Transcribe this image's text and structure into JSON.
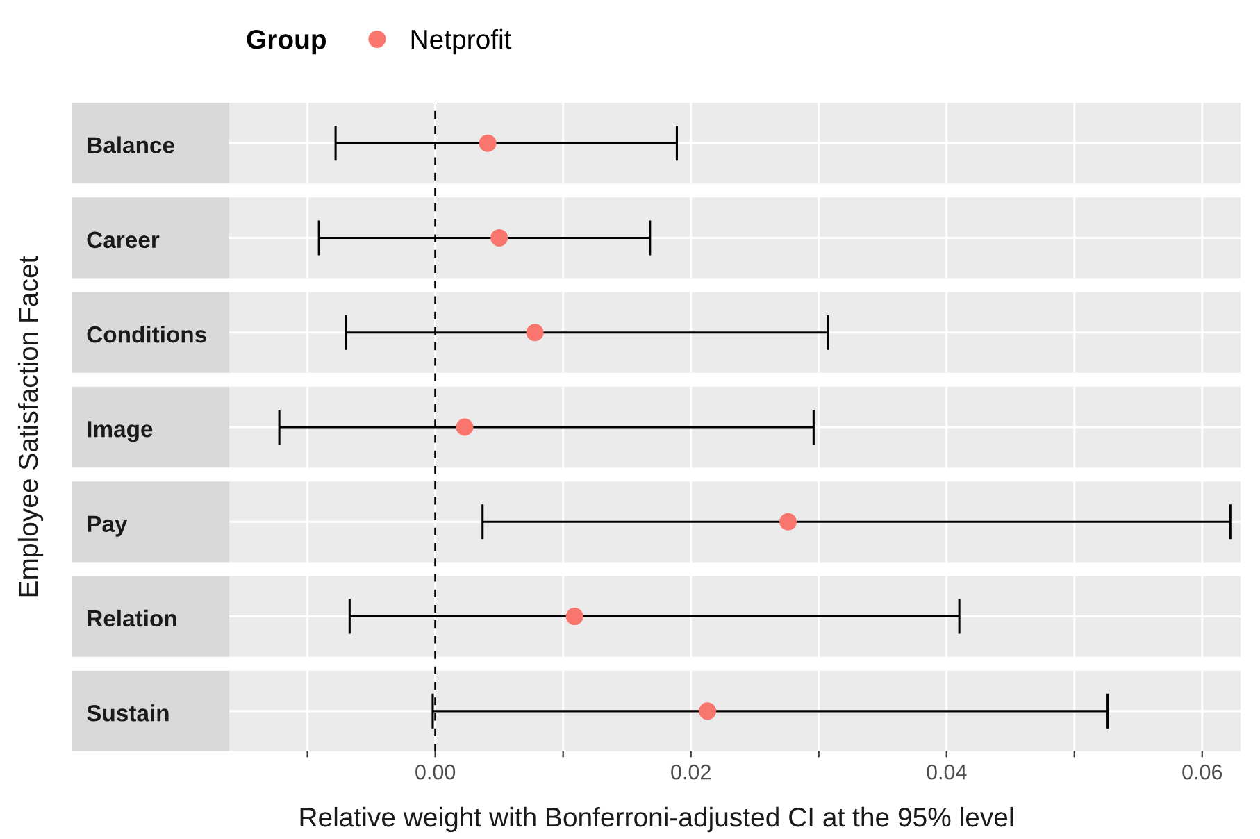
{
  "chart_data": {
    "type": "scatter",
    "orientation": "horizontal",
    "xlabel": "Relative weight with Bonferroni-adjusted CI at the 95% level",
    "ylabel": "Employee Satisfaction Facet",
    "legend_title": "Group",
    "legend": "top",
    "categories": [
      "Balance",
      "Career",
      "Conditions",
      "Image",
      "Pay",
      "Relation",
      "Sustain"
    ],
    "series": [
      {
        "name": "Netprofit",
        "color": "#f8766d",
        "values": [
          0.0041,
          0.005,
          0.0078,
          0.0023,
          0.0276,
          0.0109,
          0.0213
        ],
        "errors": [
          [
            -0.0078,
            0.0189
          ],
          [
            -0.0091,
            0.0168
          ],
          [
            -0.007,
            0.0307
          ],
          [
            -0.0122,
            0.0296
          ],
          [
            0.0037,
            0.0622
          ],
          [
            -0.0067,
            0.041
          ],
          [
            -0.0002,
            0.0526
          ]
        ]
      }
    ],
    "xlim": [
      -0.0284,
      0.063
    ],
    "xticks": [
      {
        "value": -0.01,
        "label": null
      },
      {
        "value": 0,
        "label": "0.00"
      },
      {
        "value": 0.01,
        "label": null
      },
      {
        "value": 0.02,
        "label": "0.02"
      },
      {
        "value": 0.03,
        "label": null
      },
      {
        "value": 0.04,
        "label": "0.04"
      },
      {
        "value": 0.05,
        "label": null
      },
      {
        "value": 0.06,
        "label": "0.06"
      }
    ],
    "ref_lines": [
      {
        "axis": "x",
        "value": 0,
        "line_style": "dashed",
        "color": "#000000"
      }
    ],
    "grid": true,
    "marker": "circle",
    "tick_labels": "x"
  }
}
